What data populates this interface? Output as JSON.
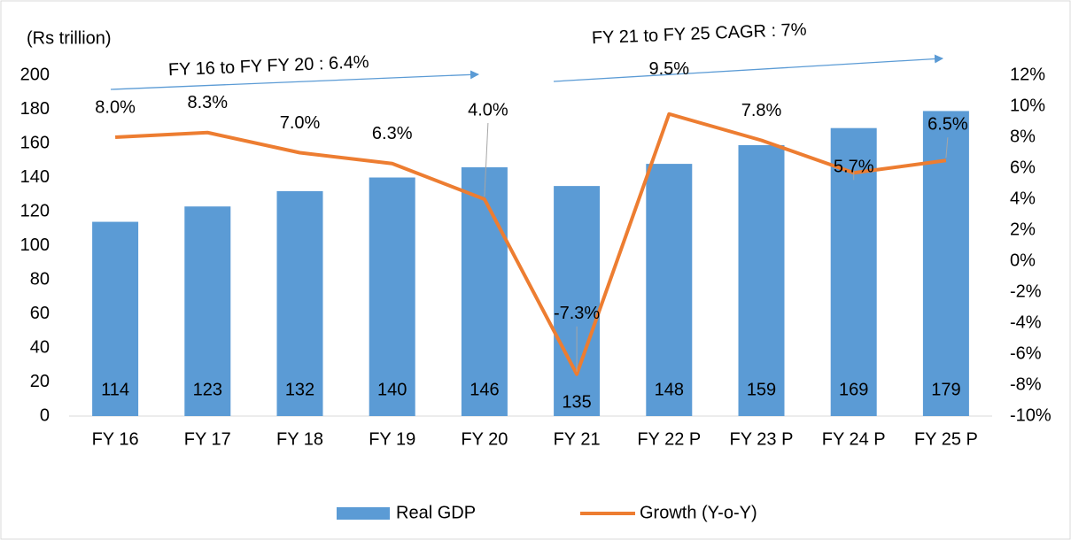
{
  "chart_data": {
    "type": "combo",
    "axis_title": "(Rs trillion)",
    "annotations": [
      "FY 16 to FY FY 20 : 6.4%",
      "FY 21 to FY 25 CAGR : 7%"
    ],
    "categories": [
      "FY 16",
      "FY 17",
      "FY 18",
      "FY 19",
      "FY 20",
      "FY 21",
      "FY 22 P",
      "FY 23 P",
      "FY 24 P",
      "FY 25 P"
    ],
    "series": [
      {
        "name": "Real GDP",
        "type": "bar",
        "color": "#5b9bd5",
        "values": [
          114,
          123,
          132,
          140,
          146,
          135,
          148,
          159,
          169,
          179
        ]
      },
      {
        "name": "Growth (Y-o-Y)",
        "type": "line",
        "axis": "y2",
        "color": "#ed7d31",
        "values": [
          8.0,
          8.3,
          7.0,
          6.3,
          4.0,
          -7.3,
          9.5,
          7.8,
          5.7,
          6.5
        ],
        "value_labels": [
          "8.0%",
          "8.3%",
          "7.0%",
          "6.3%",
          "4.0%",
          "-7.3%",
          "9.5%",
          "7.8%",
          "5.7%",
          "6.5%"
        ]
      }
    ],
    "ylim": [
      0,
      200
    ],
    "yticks": [
      0,
      20,
      40,
      60,
      80,
      100,
      120,
      140,
      160,
      180,
      200
    ],
    "y2lim": [
      -10,
      12
    ],
    "y2ticks": [
      {
        "value": -10,
        "label": "-10%"
      },
      {
        "value": -8,
        "label": "-8%"
      },
      {
        "value": -6,
        "label": "-6%"
      },
      {
        "value": -4,
        "label": "-4%"
      },
      {
        "value": -2,
        "label": "-2%"
      },
      {
        "value": 0,
        "label": "0%"
      },
      {
        "value": 2,
        "label": "2%"
      },
      {
        "value": 4,
        "label": "4%"
      },
      {
        "value": 6,
        "label": "6%"
      },
      {
        "value": 8,
        "label": "8%"
      },
      {
        "value": 10,
        "label": "10%"
      },
      {
        "value": 12,
        "label": "12%"
      }
    ],
    "grid": false,
    "legend": "bottom"
  }
}
